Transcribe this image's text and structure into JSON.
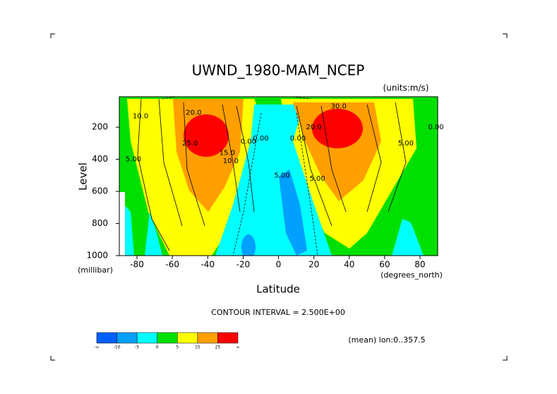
{
  "chart_data": {
    "type": "contour",
    "title": "UWND_1980-MAM_NCEP",
    "units": "(units:m/s)",
    "x_label": "Latitude",
    "x_unit": "(degrees_north)",
    "y_label": "Level",
    "y_unit": "(millibar)",
    "xlim": [
      -90,
      90
    ],
    "xticks": [
      -80,
      -60,
      -40,
      -20,
      0,
      20,
      40,
      60,
      80
    ],
    "ylim": [
      1000,
      10
    ],
    "yticks": [
      200,
      400,
      600,
      800,
      1000
    ],
    "contour_interval": "CONTOUR INTERVAL = 2.500E+00",
    "mean_note": "(mean) lon:0..357.5",
    "colorbar": {
      "colors": [
        "#0060ff",
        "#00a0ff",
        "#00ffff",
        "#00e000",
        "#ffff00",
        "#ff9f00",
        "#ff0000"
      ],
      "labels": [
        "-∞",
        "-10",
        "-5",
        "0",
        "5",
        "15",
        "25",
        "∞"
      ]
    },
    "contour_labels": [
      {
        "text": "20.0",
        "lat": -48,
        "level": 110
      },
      {
        "text": "10.0",
        "lat": -78,
        "level": 130
      },
      {
        "text": "5.00",
        "lat": -82,
        "level": 400
      },
      {
        "text": "25.0",
        "lat": -50,
        "level": 300
      },
      {
        "text": "15.0",
        "lat": -29,
        "level": 360
      },
      {
        "text": "10.0",
        "lat": -27,
        "level": 410
      },
      {
        "text": "0.00",
        "lat": -17,
        "level": 290
      },
      {
        "text": "0.00",
        "lat": -10,
        "level": 270
      },
      {
        "text": "0.00",
        "lat": 11,
        "level": 270
      },
      {
        "text": "5.00",
        "lat": 2,
        "level": 500
      },
      {
        "text": "5.00",
        "lat": 22,
        "level": 520
      },
      {
        "text": "30.0",
        "lat": 34,
        "level": 70
      },
      {
        "text": "20.0",
        "lat": 20,
        "level": 200
      },
      {
        "text": "5.00",
        "lat": 72,
        "level": 300
      },
      {
        "text": "0.00",
        "lat": 89,
        "level": 200
      }
    ]
  }
}
